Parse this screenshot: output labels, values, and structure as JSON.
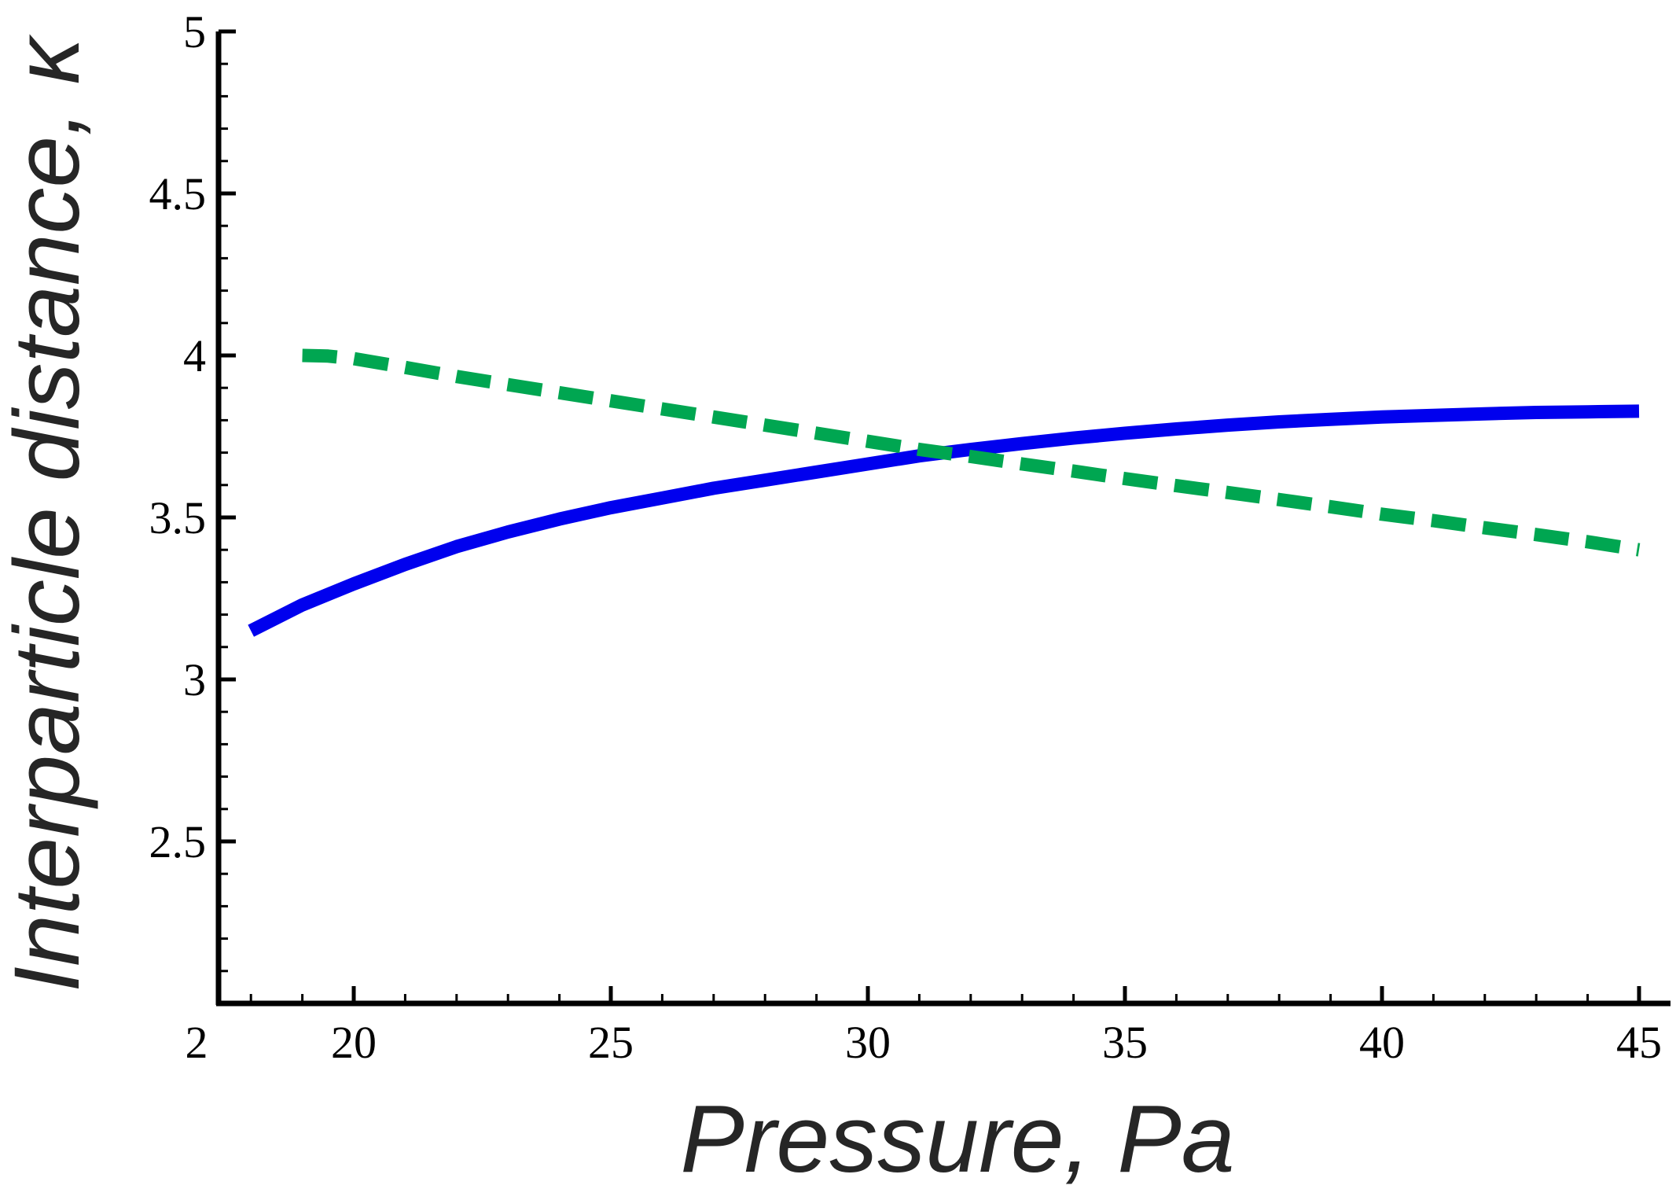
{
  "chart_data": {
    "type": "line",
    "xlabel": "Pressure, Pa",
    "ylabel": "Interparticle distance, κ",
    "xlim": [
      17.5,
      46
    ],
    "ylim": [
      2,
      5
    ],
    "origin_label": "2",
    "x_ticks": [
      {
        "value": 20,
        "label": "20"
      },
      {
        "value": 25,
        "label": "25"
      },
      {
        "value": 30,
        "label": "30"
      },
      {
        "value": 35,
        "label": "35"
      },
      {
        "value": 40,
        "label": "40"
      },
      {
        "value": 45,
        "label": "45"
      }
    ],
    "y_ticks": [
      {
        "value": 2.5,
        "label": "2.5"
      },
      {
        "value": 3,
        "label": "3"
      },
      {
        "value": 3.5,
        "label": "3.5"
      },
      {
        "value": 4,
        "label": "4"
      },
      {
        "value": 4.5,
        "label": "4.5"
      },
      {
        "value": 5,
        "label": "5"
      }
    ],
    "series": [
      {
        "name": "solid",
        "color": "#0000ee",
        "style": "solid",
        "x": [
          18,
          19,
          20,
          21,
          22,
          23,
          24,
          25,
          26,
          27,
          28,
          29,
          30,
          31,
          32,
          33,
          34,
          35,
          36,
          37,
          38,
          39,
          40,
          41,
          42,
          43,
          44,
          45
        ],
        "y": [
          3.15,
          3.23,
          3.295,
          3.355,
          3.41,
          3.455,
          3.495,
          3.53,
          3.56,
          3.59,
          3.615,
          3.64,
          3.665,
          3.69,
          3.71,
          3.728,
          3.745,
          3.76,
          3.773,
          3.785,
          3.795,
          3.803,
          3.81,
          3.815,
          3.82,
          3.824,
          3.826,
          3.828
        ]
      },
      {
        "name": "dashed",
        "color": "#00a651",
        "style": "dashed",
        "x": [
          19,
          19.5,
          20,
          21,
          22,
          23,
          24,
          25,
          26,
          27,
          28,
          29,
          30,
          31,
          32,
          33,
          34,
          35,
          36,
          37,
          38,
          39,
          40,
          41,
          42,
          43,
          44,
          45
        ],
        "y": [
          4.0,
          3.998,
          3.99,
          3.963,
          3.935,
          3.91,
          3.885,
          3.86,
          3.835,
          3.81,
          3.785,
          3.76,
          3.735,
          3.71,
          3.688,
          3.665,
          3.643,
          3.62,
          3.598,
          3.577,
          3.555,
          3.533,
          3.51,
          3.49,
          3.468,
          3.447,
          3.425,
          3.4
        ]
      }
    ]
  }
}
